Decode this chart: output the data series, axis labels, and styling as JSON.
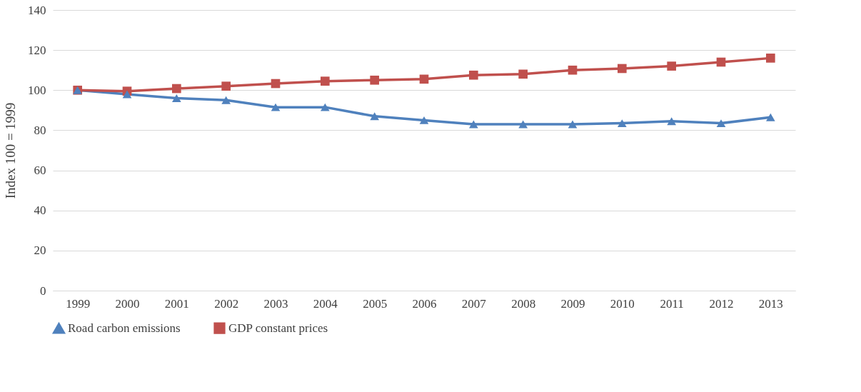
{
  "chart_data": {
    "type": "line",
    "ylabel": "Index 100 = 1999",
    "categories": [
      "1999",
      "2000",
      "2001",
      "2002",
      "2003",
      "2004",
      "2005",
      "2006",
      "2007",
      "2008",
      "2009",
      "2010",
      "2011",
      "2012",
      "2013"
    ],
    "series": [
      {
        "name": "Road carbon emissions",
        "color": "#4f81bd",
        "marker": "triangle",
        "values": [
          100,
          98,
          96,
          95,
          91.5,
          91.5,
          87,
          85,
          83,
          83,
          83,
          83.5,
          84.5,
          83.5,
          86.5
        ]
      },
      {
        "name": "GDP constant prices",
        "color": "#c0504d",
        "marker": "square",
        "values": [
          100,
          99.5,
          100.8,
          102,
          103.3,
          104.5,
          105,
          105.5,
          107.5,
          108,
          110,
          110.8,
          112,
          114,
          116
        ]
      }
    ],
    "ylim": [
      0,
      140
    ],
    "yticks": [
      0,
      20,
      40,
      60,
      80,
      100,
      120,
      140
    ],
    "grid": "y",
    "legend": "bottom",
    "line_style": "solid"
  }
}
